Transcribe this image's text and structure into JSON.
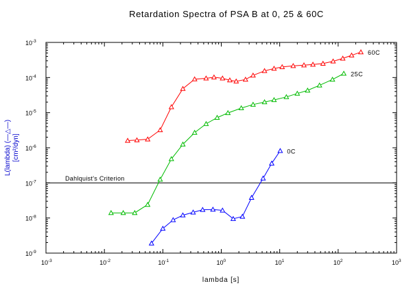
{
  "chart_data": {
    "type": "line",
    "title": "Retardation Spectra of PSA B at 0, 25 & 60C",
    "xlabel": "lambda [s]",
    "ylabel_line1": "L(lambda) (—△—)",
    "ylabel_line2": "[cm²/dyn]",
    "xscale": "log",
    "yscale": "log",
    "xlim": [
      0.001,
      1000
    ],
    "ylim": [
      1e-09,
      0.001
    ],
    "x_ticks": [
      {
        "base": "10",
        "exp": "-3",
        "value": 0.001
      },
      {
        "base": "10",
        "exp": "-2",
        "value": 0.01
      },
      {
        "base": "10",
        "exp": "-1",
        "value": 0.1
      },
      {
        "base": "10",
        "exp": "0",
        "value": 1
      },
      {
        "base": "10",
        "exp": "1",
        "value": 10
      },
      {
        "base": "10",
        "exp": "2",
        "value": 100
      },
      {
        "base": "10",
        "exp": "3",
        "value": 1000
      }
    ],
    "y_ticks": [
      {
        "base": "10",
        "exp": "-9",
        "value": 1e-09
      },
      {
        "base": "10",
        "exp": "-8",
        "value": 1e-08
      },
      {
        "base": "10",
        "exp": "-7",
        "value": 1e-07
      },
      {
        "base": "10",
        "exp": "-6",
        "value": 1e-06
      },
      {
        "base": "10",
        "exp": "-5",
        "value": 1e-05
      },
      {
        "base": "10",
        "exp": "-4",
        "value": 0.0001
      },
      {
        "base": "10",
        "exp": "-3",
        "value": 0.001
      }
    ],
    "grid": false,
    "marker": "triangle-open",
    "reference_line": {
      "label": "Dahlquist's Criterion",
      "y": 1e-07,
      "color": "#000000"
    },
    "series": [
      {
        "name": "60C",
        "color": "#ff0000",
        "points": [
          [
            0.025,
            1.6e-06
          ],
          [
            0.036,
            1.65e-06
          ],
          [
            0.055,
            1.75e-06
          ],
          [
            0.09,
            3.2e-06
          ],
          [
            0.14,
            1.45e-05
          ],
          [
            0.22,
            4.8e-05
          ],
          [
            0.35,
            9e-05
          ],
          [
            0.55,
            9.5e-05
          ],
          [
            0.75,
            0.000102
          ],
          [
            1.05,
            9.5e-05
          ],
          [
            1.4,
            8.4e-05
          ],
          [
            1.8,
            7.8e-05
          ],
          [
            2.6,
            8.8e-05
          ],
          [
            3.5,
            0.000115
          ],
          [
            5.5,
            0.000155
          ],
          [
            8.0,
            0.00018
          ],
          [
            11,
            0.0002
          ],
          [
            17,
            0.000215
          ],
          [
            26,
            0.000225
          ],
          [
            37,
            0.000235
          ],
          [
            55,
            0.00025
          ],
          [
            82,
            0.00029
          ],
          [
            120,
            0.00035
          ],
          [
            170,
            0.00043
          ],
          [
            245,
            0.00053
          ]
        ]
      },
      {
        "name": "25C",
        "color": "#00bb00",
        "points": [
          [
            0.013,
            1.4e-08
          ],
          [
            0.021,
            1.4e-08
          ],
          [
            0.033,
            1.4e-08
          ],
          [
            0.055,
            2.4e-08
          ],
          [
            0.09,
            1.25e-07
          ],
          [
            0.14,
            4.8e-07
          ],
          [
            0.22,
            1.25e-06
          ],
          [
            0.35,
            2.7e-06
          ],
          [
            0.55,
            4.8e-06
          ],
          [
            0.85,
            7.2e-06
          ],
          [
            1.3,
            9.8e-06
          ],
          [
            2.2,
            1.35e-05
          ],
          [
            3.5,
            1.7e-05
          ],
          [
            5.5,
            2e-05
          ],
          [
            8.0,
            2.3e-05
          ],
          [
            13,
            2.8e-05
          ],
          [
            20,
            3.5e-05
          ],
          [
            30,
            4.3e-05
          ],
          [
            48,
            6e-05
          ],
          [
            80,
            8.8e-05
          ],
          [
            125,
            0.00013
          ]
        ]
      },
      {
        "name": "0C",
        "color": "#0000ff",
        "points": [
          [
            0.064,
            1.9e-09
          ],
          [
            0.1,
            5e-09
          ],
          [
            0.15,
            8.8e-09
          ],
          [
            0.22,
            1.2e-08
          ],
          [
            0.33,
            1.45e-08
          ],
          [
            0.48,
            1.72e-08
          ],
          [
            0.72,
            1.75e-08
          ],
          [
            1.05,
            1.65e-08
          ],
          [
            1.6,
            9.5e-09
          ],
          [
            2.3,
            1.1e-08
          ],
          [
            3.3,
            3.8e-08
          ],
          [
            5.2,
            1.35e-07
          ],
          [
            7.3,
            3.6e-07
          ],
          [
            10.2,
            8.2e-07
          ]
        ]
      }
    ]
  }
}
